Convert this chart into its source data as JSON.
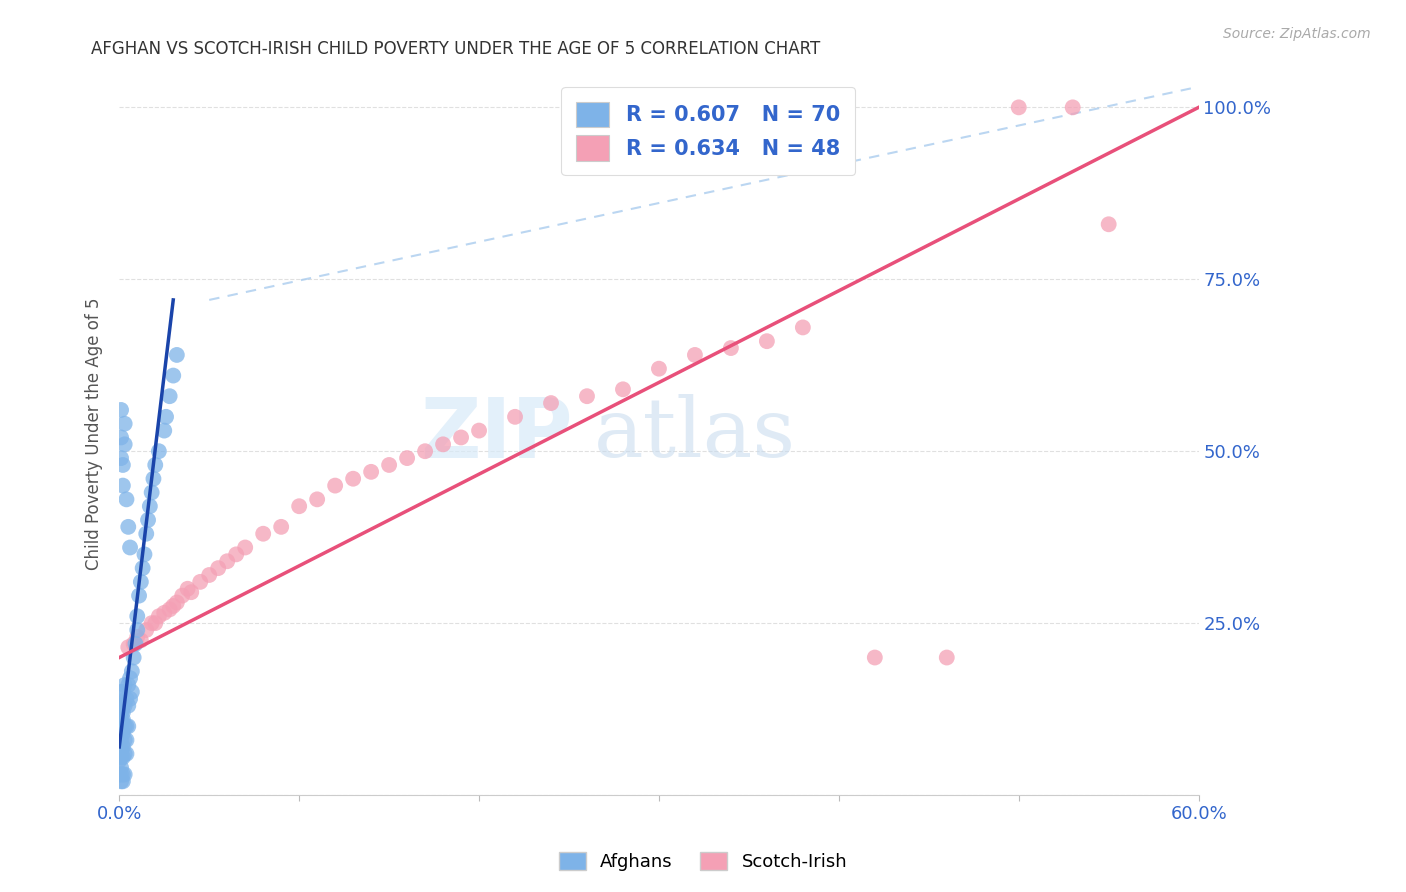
{
  "title": "AFGHAN VS SCOTCH-IRISH CHILD POVERTY UNDER THE AGE OF 5 CORRELATION CHART",
  "source": "Source: ZipAtlas.com",
  "ylabel": "Child Poverty Under the Age of 5",
  "xlim": [
    0.0,
    0.6
  ],
  "ylim": [
    0.0,
    1.05
  ],
  "afghan_color": "#7EB3E8",
  "scotch_color": "#F4A0B5",
  "afghan_R": 0.607,
  "afghan_N": 70,
  "scotch_R": 0.634,
  "scotch_N": 48,
  "afghan_line_color": "#1A44AA",
  "scotch_line_color": "#E8507A",
  "legend_label_afghan": "Afghans",
  "legend_label_scotch": "Scotch-Irish",
  "title_color": "#333333",
  "tick_color": "#3366CC",
  "background_color": "#FFFFFF",
  "grid_color": "#E0E0E0",
  "afghan_scatter_x": [
    0.0,
    0.0,
    0.0,
    0.001,
    0.001,
    0.001,
    0.001,
    0.001,
    0.001,
    0.001,
    0.001,
    0.001,
    0.001,
    0.001,
    0.002,
    0.002,
    0.002,
    0.002,
    0.002,
    0.002,
    0.002,
    0.002,
    0.002,
    0.003,
    0.003,
    0.003,
    0.003,
    0.003,
    0.003,
    0.004,
    0.004,
    0.004,
    0.004,
    0.005,
    0.005,
    0.005,
    0.006,
    0.006,
    0.007,
    0.007,
    0.008,
    0.009,
    0.01,
    0.01,
    0.011,
    0.012,
    0.013,
    0.014,
    0.015,
    0.016,
    0.017,
    0.018,
    0.019,
    0.02,
    0.022,
    0.025,
    0.026,
    0.028,
    0.03,
    0.032,
    0.001,
    0.001,
    0.001,
    0.002,
    0.002,
    0.003,
    0.003,
    0.004,
    0.005,
    0.006
  ],
  "afghan_scatter_y": [
    0.03,
    0.05,
    0.07,
    0.02,
    0.03,
    0.04,
    0.055,
    0.065,
    0.08,
    0.1,
    0.11,
    0.12,
    0.13,
    0.15,
    0.02,
    0.03,
    0.055,
    0.07,
    0.09,
    0.11,
    0.12,
    0.13,
    0.15,
    0.03,
    0.06,
    0.08,
    0.1,
    0.13,
    0.16,
    0.06,
    0.08,
    0.1,
    0.14,
    0.1,
    0.13,
    0.16,
    0.14,
    0.17,
    0.15,
    0.18,
    0.2,
    0.22,
    0.24,
    0.26,
    0.29,
    0.31,
    0.33,
    0.35,
    0.38,
    0.4,
    0.42,
    0.44,
    0.46,
    0.48,
    0.5,
    0.53,
    0.55,
    0.58,
    0.61,
    0.64,
    0.56,
    0.49,
    0.52,
    0.45,
    0.48,
    0.51,
    0.54,
    0.43,
    0.39,
    0.36
  ],
  "scotch_scatter_x": [
    0.005,
    0.008,
    0.01,
    0.012,
    0.015,
    0.018,
    0.02,
    0.022,
    0.025,
    0.028,
    0.03,
    0.032,
    0.035,
    0.038,
    0.04,
    0.045,
    0.05,
    0.055,
    0.06,
    0.065,
    0.07,
    0.08,
    0.09,
    0.1,
    0.11,
    0.12,
    0.13,
    0.14,
    0.15,
    0.16,
    0.17,
    0.18,
    0.19,
    0.2,
    0.22,
    0.24,
    0.26,
    0.28,
    0.3,
    0.32,
    0.34,
    0.36,
    0.38,
    0.42,
    0.46,
    0.5,
    0.53,
    0.55
  ],
  "scotch_scatter_y": [
    0.215,
    0.22,
    0.23,
    0.225,
    0.24,
    0.25,
    0.25,
    0.26,
    0.265,
    0.27,
    0.275,
    0.28,
    0.29,
    0.3,
    0.295,
    0.31,
    0.32,
    0.33,
    0.34,
    0.35,
    0.36,
    0.38,
    0.39,
    0.42,
    0.43,
    0.45,
    0.46,
    0.47,
    0.48,
    0.49,
    0.5,
    0.51,
    0.52,
    0.53,
    0.55,
    0.57,
    0.58,
    0.59,
    0.62,
    0.64,
    0.65,
    0.66,
    0.68,
    0.2,
    0.2,
    1.0,
    1.0,
    0.83
  ],
  "afghan_line_x0": 0.0,
  "afghan_line_y0": 0.07,
  "afghan_line_x1": 0.03,
  "afghan_line_y1": 0.72,
  "scotch_line_x0": 0.0,
  "scotch_line_y0": 0.2,
  "scotch_line_x1": 0.6,
  "scotch_line_y1": 1.0,
  "dash_line_x0": 0.05,
  "dash_line_y0": 0.72,
  "dash_line_x1": 0.6,
  "dash_line_y1": 1.03
}
